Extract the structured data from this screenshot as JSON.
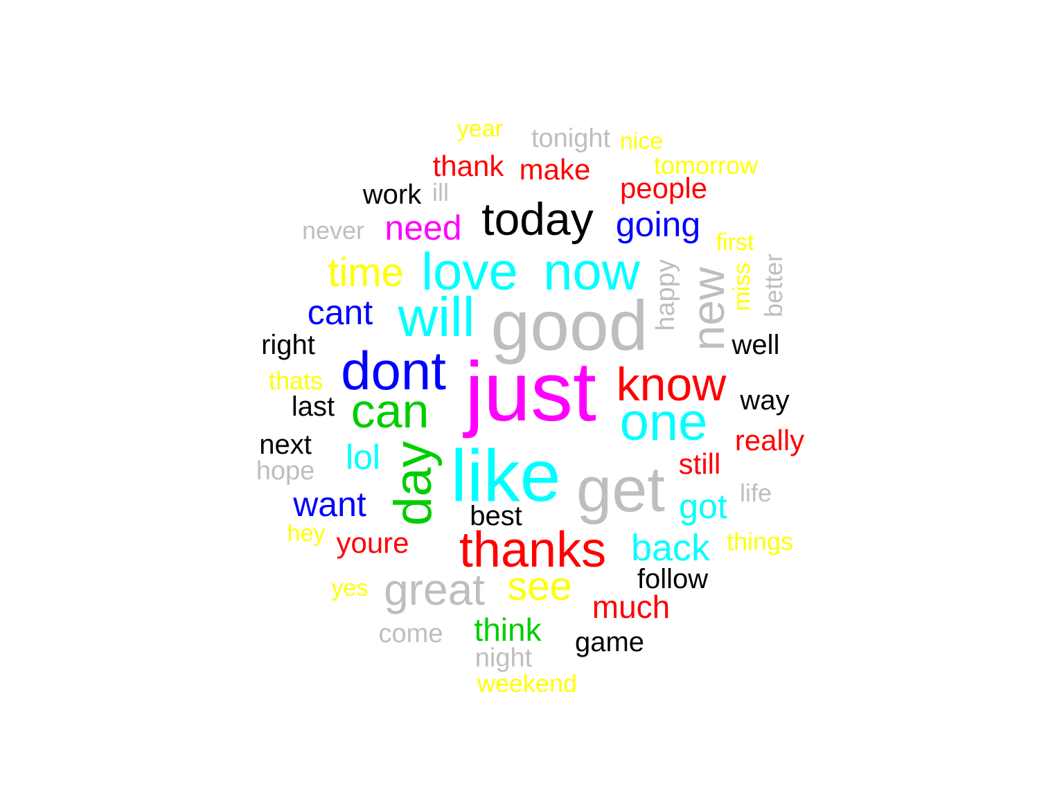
{
  "colors": {
    "background": "#ffffff",
    "magenta": "#ff00ff",
    "cyan": "#00ffff",
    "gray": "#bebebe",
    "blue": "#0000ff",
    "red": "#ff0000",
    "black": "#000000",
    "green": "#00cd00",
    "yellow": "#ffff00"
  },
  "words": [
    {
      "text": "just",
      "color": "#ff00ff",
      "rotated": false
    },
    {
      "text": "like",
      "color": "#00ffff",
      "rotated": false
    },
    {
      "text": "good",
      "color": "#bebebe",
      "rotated": false
    },
    {
      "text": "get",
      "color": "#bebebe",
      "rotated": false
    },
    {
      "text": "dont",
      "color": "#0000ff",
      "rotated": false
    },
    {
      "text": "now",
      "color": "#00ffff",
      "rotated": false
    },
    {
      "text": "will",
      "color": "#00ffff",
      "rotated": false
    },
    {
      "text": "love",
      "color": "#00ffff",
      "rotated": false
    },
    {
      "text": "know",
      "color": "#ff0000",
      "rotated": false
    },
    {
      "text": "one",
      "color": "#00ffff",
      "rotated": false
    },
    {
      "text": "thanks",
      "color": "#ff0000",
      "rotated": false
    },
    {
      "text": "today",
      "color": "#000000",
      "rotated": false
    },
    {
      "text": "can",
      "color": "#00cd00",
      "rotated": false
    },
    {
      "text": "day",
      "color": "#00cd00",
      "rotated": true
    },
    {
      "text": "new",
      "color": "#bebebe",
      "rotated": true
    },
    {
      "text": "great",
      "color": "#bebebe",
      "rotated": false
    },
    {
      "text": "see",
      "color": "#ffff00",
      "rotated": false
    },
    {
      "text": "back",
      "color": "#00ffff",
      "rotated": false
    },
    {
      "text": "time",
      "color": "#ffff00",
      "rotated": false
    },
    {
      "text": "need",
      "color": "#ff00ff",
      "rotated": false
    },
    {
      "text": "going",
      "color": "#0000ff",
      "rotated": false
    },
    {
      "text": "cant",
      "color": "#0000ff",
      "rotated": false
    },
    {
      "text": "lol",
      "color": "#00ffff",
      "rotated": false
    },
    {
      "text": "want",
      "color": "#0000ff",
      "rotated": false
    },
    {
      "text": "got",
      "color": "#00ffff",
      "rotated": false
    },
    {
      "text": "people",
      "color": "#ff0000",
      "rotated": false
    },
    {
      "text": "thank",
      "color": "#ff0000",
      "rotated": false
    },
    {
      "text": "make",
      "color": "#ff0000",
      "rotated": false
    },
    {
      "text": "youre",
      "color": "#ff0000",
      "rotated": false
    },
    {
      "text": "much",
      "color": "#ff0000",
      "rotated": false
    },
    {
      "text": "think",
      "color": "#00cd00",
      "rotated": false
    },
    {
      "text": "still",
      "color": "#ff0000",
      "rotated": false
    },
    {
      "text": "really",
      "color": "#ff0000",
      "rotated": false
    },
    {
      "text": "right",
      "color": "#000000",
      "rotated": false
    },
    {
      "text": "last",
      "color": "#000000",
      "rotated": false
    },
    {
      "text": "next",
      "color": "#000000",
      "rotated": false
    },
    {
      "text": "well",
      "color": "#000000",
      "rotated": false
    },
    {
      "text": "way",
      "color": "#000000",
      "rotated": false
    },
    {
      "text": "best",
      "color": "#000000",
      "rotated": false
    },
    {
      "text": "follow",
      "color": "#000000",
      "rotated": false
    },
    {
      "text": "game",
      "color": "#000000",
      "rotated": false
    },
    {
      "text": "work",
      "color": "#000000",
      "rotated": false
    },
    {
      "text": "happy",
      "color": "#bebebe",
      "rotated": true
    },
    {
      "text": "miss",
      "color": "#ffff00",
      "rotated": true
    },
    {
      "text": "better",
      "color": "#bebebe",
      "rotated": true
    },
    {
      "text": "come",
      "color": "#bebebe",
      "rotated": false
    },
    {
      "text": "night",
      "color": "#bebebe",
      "rotated": false
    },
    {
      "text": "never",
      "color": "#bebebe",
      "rotated": false
    },
    {
      "text": "hope",
      "color": "#bebebe",
      "rotated": false
    },
    {
      "text": "tonight",
      "color": "#bebebe",
      "rotated": false
    },
    {
      "text": "ill",
      "color": "#bebebe",
      "rotated": false
    },
    {
      "text": "life",
      "color": "#bebebe",
      "rotated": false
    },
    {
      "text": "year",
      "color": "#ffff00",
      "rotated": false
    },
    {
      "text": "nice",
      "color": "#ffff00",
      "rotated": false
    },
    {
      "text": "tomorrow",
      "color": "#ffff00",
      "rotated": false
    },
    {
      "text": "first",
      "color": "#ffff00",
      "rotated": false
    },
    {
      "text": "thats",
      "color": "#ffff00",
      "rotated": false
    },
    {
      "text": "hey",
      "color": "#ffff00",
      "rotated": false
    },
    {
      "text": "things",
      "color": "#ffff00",
      "rotated": false
    },
    {
      "text": "yes",
      "color": "#ffff00",
      "rotated": false
    },
    {
      "text": "weekend",
      "color": "#ffff00",
      "rotated": false
    }
  ]
}
